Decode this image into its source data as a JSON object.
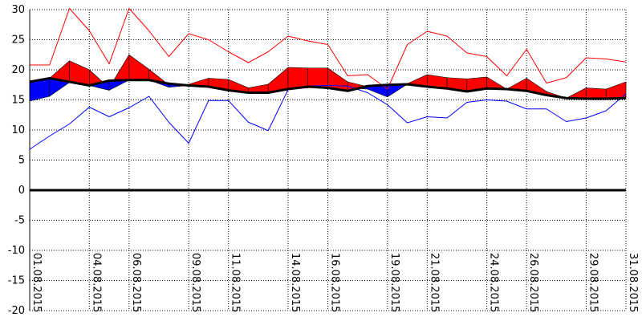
{
  "chart_data": {
    "type": "line",
    "title": "",
    "xlabel": "",
    "ylabel": "",
    "ylim": [
      -20,
      30
    ],
    "y_ticks": [
      -20,
      -15,
      -10,
      -5,
      0,
      5,
      10,
      15,
      20,
      25,
      30
    ],
    "y_tick_labels": [
      "-20",
      "-15",
      "-10",
      "-5",
      "0",
      "5",
      "10",
      "15",
      "20",
      "25",
      "30"
    ],
    "grid": "dotted",
    "x_tick_days": [
      1,
      4,
      6,
      9,
      11,
      14,
      16,
      19,
      21,
      24,
      26,
      29,
      31
    ],
    "x_tick_labels": [
      "01.08.2015",
      "04.08.2015",
      "06.08.2015",
      "09.08.2015",
      "11.08.2015",
      "14.08.2015",
      "16.08.2015",
      "19.08.2015",
      "21.08.2015",
      "24.08.2015",
      "26.08.2015",
      "29.08.2015",
      "31.08.2015"
    ],
    "series": [
      {
        "name": "",
        "color": "#000000",
        "values": [
          18.0,
          18.6,
          18.0,
          17.4,
          18.2,
          18.3,
          18.3,
          17.7,
          17.4,
          17.2,
          16.6,
          16.2,
          16.2,
          16.8,
          17.2,
          17.0,
          16.5,
          17.3,
          17.5,
          17.6,
          17.2,
          16.9,
          16.4,
          16.9,
          16.8,
          16.5,
          15.8,
          15.3,
          15.2,
          15.2,
          15.3
        ]
      },
      {
        "name": "",
        "color": "#ff0000",
        "values": [
          17.9,
          18.6,
          21.5,
          20.0,
          17.0,
          22.5,
          20.1,
          17.5,
          17.6,
          18.6,
          18.4,
          17.0,
          17.6,
          20.4,
          20.3,
          20.3,
          18.0,
          17.2,
          17.0,
          17.7,
          19.2,
          18.7,
          18.5,
          18.8,
          16.8,
          18.6,
          16.4,
          15.3,
          17.0,
          16.8,
          18.0
        ]
      },
      {
        "name": "",
        "color": "#0000ff",
        "values": [
          14.8,
          15.6,
          17.9,
          17.4,
          16.6,
          18.3,
          18.3,
          17.1,
          17.4,
          17.2,
          16.5,
          16.2,
          16.2,
          16.8,
          17.0,
          17.6,
          17.0,
          16.8,
          15.5,
          17.6,
          17.2,
          16.9,
          16.4,
          16.9,
          16.8,
          16.4,
          15.7,
          15.2,
          15.2,
          15.1,
          15.3
        ]
      },
      {
        "name": "",
        "color": "#ff0000",
        "values": [
          20.8,
          20.8,
          30.2,
          26.5,
          21.0,
          30.2,
          26.5,
          22.2,
          26.0,
          25.0,
          23.0,
          21.2,
          23.0,
          25.6,
          24.8,
          24.2,
          19.0,
          19.2,
          16.8,
          24.2,
          26.4,
          25.6,
          22.8,
          22.2,
          19.0,
          23.4,
          17.8,
          18.7,
          22.0,
          21.8,
          21.3
        ]
      },
      {
        "name": "",
        "color": "#0000ff",
        "values": [
          6.8,
          9.0,
          11.0,
          13.8,
          12.2,
          13.7,
          15.6,
          11.3,
          7.8,
          14.9,
          14.9,
          11.3,
          9.9,
          16.7,
          17.3,
          17.4,
          17.3,
          16.2,
          14.2,
          11.2,
          12.2,
          12.0,
          14.6,
          15.0,
          14.8,
          13.5,
          13.5,
          11.4,
          12.0,
          13.2,
          16.0
        ]
      }
    ]
  }
}
